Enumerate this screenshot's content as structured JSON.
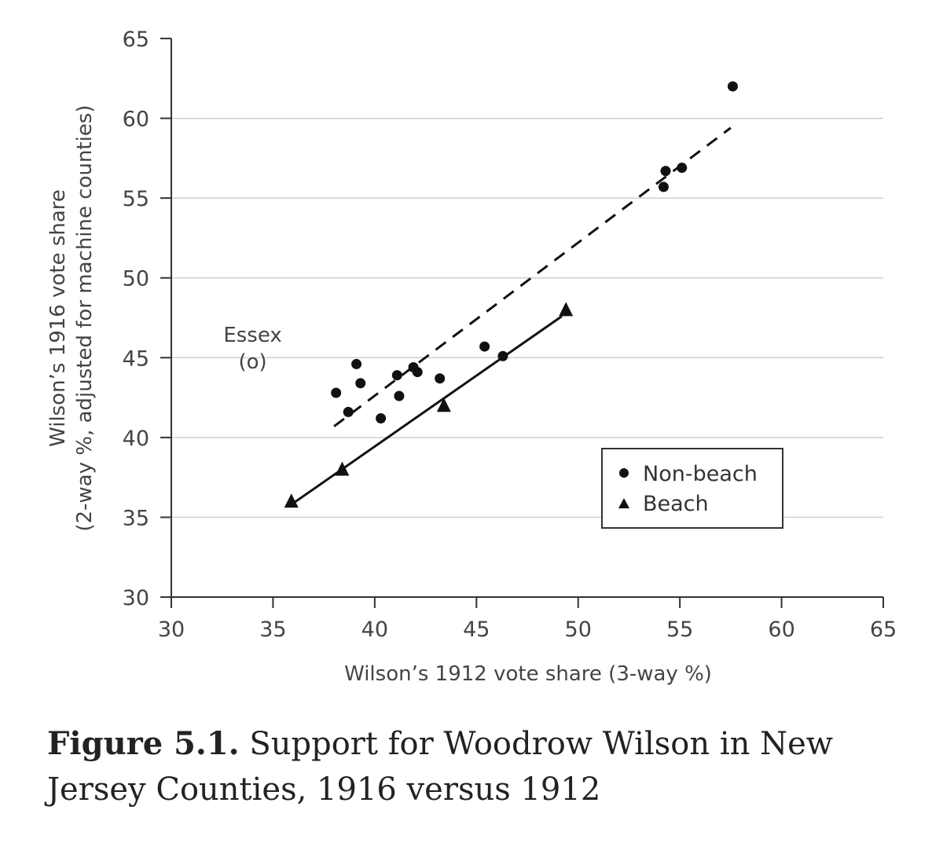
{
  "chart_data": {
    "type": "scatter",
    "xlabel": "Wilson’s 1912 vote share (3-way %)",
    "ylabel_line1": "Wilson’s 1916 vote share",
    "ylabel_line2": "(2-way %, adjusted for machine counties)",
    "xlim": [
      30,
      65
    ],
    "ylim": [
      30,
      65
    ],
    "xticks": [
      30,
      35,
      40,
      45,
      50,
      55,
      60,
      65
    ],
    "yticks": [
      30,
      35,
      40,
      45,
      50,
      55,
      60,
      65
    ],
    "grid": "horizontal",
    "legend_position": "lower-right",
    "series": [
      {
        "name": "Non-beach",
        "marker": "circle",
        "points": [
          [
            38.1,
            42.8
          ],
          [
            38.7,
            41.6
          ],
          [
            39.1,
            44.6
          ],
          [
            39.3,
            43.4
          ],
          [
            40.3,
            41.2
          ],
          [
            41.1,
            43.9
          ],
          [
            41.2,
            42.6
          ],
          [
            41.9,
            44.4
          ],
          [
            42.1,
            44.1
          ],
          [
            43.2,
            43.7
          ],
          [
            45.4,
            45.7
          ],
          [
            46.3,
            45.1
          ],
          [
            54.2,
            55.7
          ],
          [
            54.3,
            56.7
          ],
          [
            55.1,
            56.9
          ],
          [
            57.6,
            62.0
          ]
        ],
        "fit_line": {
          "style": "dashed",
          "from": [
            38.0,
            40.7
          ],
          "to": [
            57.5,
            59.4
          ]
        }
      },
      {
        "name": "Beach",
        "marker": "triangle",
        "points": [
          [
            35.9,
            36.0
          ],
          [
            38.4,
            38.0
          ],
          [
            43.4,
            42.0
          ],
          [
            49.4,
            48.0
          ]
        ],
        "fit_line": {
          "style": "solid",
          "from": [
            35.9,
            35.8
          ],
          "to": [
            49.2,
            47.6
          ]
        }
      }
    ],
    "annotations": [
      {
        "text_line1": "Essex",
        "text_line2": "(o)",
        "x": 34.0,
        "y": 45.3
      }
    ]
  },
  "caption": {
    "label": "Figure 5.1.",
    "text": " Support for Woodrow Wilson in New Jersey Counties, 1916 versus 1912"
  }
}
